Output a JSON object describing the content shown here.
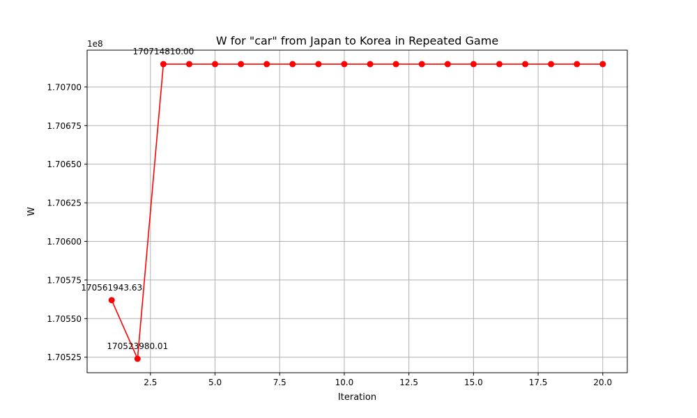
{
  "chart_data": {
    "type": "line",
    "title": "W for \"car\" from Japan to Korea in Repeated Game",
    "xlabel": "Iteration",
    "ylabel": "W",
    "y_offset_label": "1e8",
    "y_scale_factor": 100000000,
    "xlim": [
      0.05,
      20.95
    ],
    "ylim": [
      170514938.5,
      170723851.5
    ],
    "x_ticks": [
      2.5,
      5.0,
      7.5,
      10.0,
      12.5,
      15.0,
      17.5,
      20.0
    ],
    "x_tick_labels": [
      "2.5",
      "5.0",
      "7.5",
      "10.0",
      "12.5",
      "15.0",
      "17.5",
      "20.0"
    ],
    "y_ticks": [
      170525000,
      170550000,
      170575000,
      170600000,
      170625000,
      170650000,
      170675000,
      170700000
    ],
    "y_tick_labels": [
      "1.70525",
      "1.70550",
      "1.70575",
      "1.70600",
      "1.70625",
      "1.70650",
      "1.70675",
      "1.70700"
    ],
    "grid": true,
    "series": [
      {
        "x": [
          1,
          2,
          3,
          4,
          5,
          6,
          7,
          8,
          9,
          10,
          11,
          12,
          13,
          14,
          15,
          16,
          17,
          18,
          19,
          20
        ],
        "values": [
          170561943.63,
          170523980.01,
          170714810.0,
          170714810.0,
          170714810.0,
          170714810.0,
          170714810.0,
          170714810.0,
          170714810.0,
          170714810.0,
          170714810.0,
          170714810.0,
          170714810.0,
          170714810.0,
          170714810.0,
          170714810.0,
          170714810.0,
          170714810.0,
          170714810.0,
          170714810.0
        ],
        "color": "#ff0000"
      }
    ],
    "annotations": [
      {
        "x": 1,
        "y": 170561943.63,
        "text": "170561943.63"
      },
      {
        "x": 2,
        "y": 170523980.01,
        "text": "170523980.01"
      },
      {
        "x": 3,
        "y": 170714810.0,
        "text": "170714810.00"
      }
    ]
  },
  "colors": {
    "series": "#ff0000",
    "grid": "#b0b0b0",
    "axis": "#000000"
  }
}
